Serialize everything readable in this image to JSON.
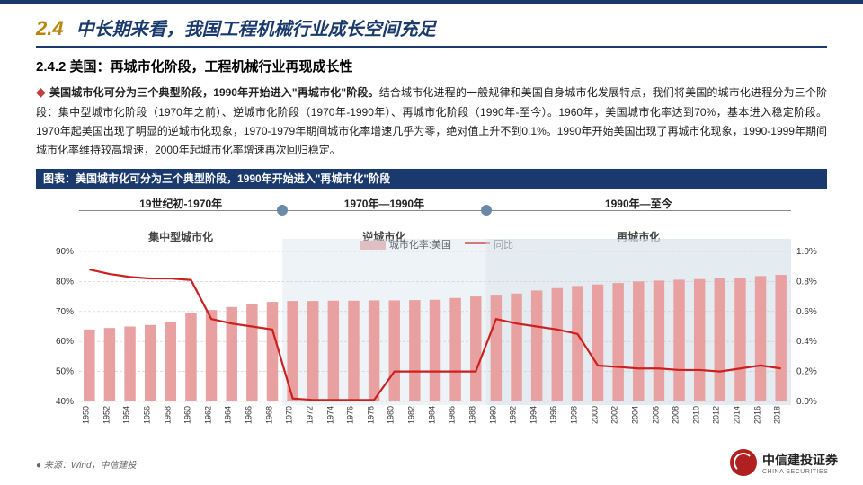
{
  "header": {
    "section_number": "2.4",
    "section_title": "中长期来看，我国工程机械行业成长空间充足"
  },
  "subtitle": "2.4.2 美国：再城市化阶段，工程机械行业再现成长性",
  "body": {
    "lead": "美国城市化可分为三个典型阶段，1990年开始进入\"再城市化\"阶段。",
    "rest": "结合城市化进程的一般规律和美国自身城市化发展特点，我们将美国的城市化进程分为三个阶段：集中型城市化阶段（1970年之前）、逆城市化阶段（1970年-1990年）、再城市化阶段（1990年-至今）。1960年，美国城市化率达到70%，基本进入稳定阶段。1970年起美国出现了明显的逆城市化现象，1970-1979年期间城市化率增速几乎为零，绝对值上升不到0.1%。1990年开始美国出现了再城市化现象，1990-1999年期间城市化率维持较高增速，2000年起城市化率增速再次回归稳定。"
  },
  "chart": {
    "title": "图表：美国城市化可分为三个典型阶段，1990年开始进入\"再城市化\"阶段",
    "periods": [
      {
        "label": "19世纪初-1970年",
        "stage": "集中型城市化"
      },
      {
        "label": "1970年—1990年",
        "stage": "逆城市化"
      },
      {
        "label": "1990年—至今",
        "stage": "再城市化"
      }
    ],
    "legend": {
      "bar": "城市化率:美国",
      "line": "同比"
    },
    "years": [
      1950,
      1952,
      1954,
      1956,
      1958,
      1960,
      1962,
      1964,
      1966,
      1968,
      1970,
      1972,
      1974,
      1976,
      1978,
      1980,
      1982,
      1984,
      1986,
      1988,
      1990,
      1992,
      1994,
      1996,
      1998,
      2000,
      2002,
      2004,
      2006,
      2008,
      2010,
      2012,
      2014,
      2016,
      2018
    ],
    "urban_rate": [
      64,
      64.5,
      65,
      65.5,
      66.5,
      69.5,
      70.5,
      71.5,
      72.5,
      73.2,
      73.5,
      73.5,
      73.6,
      73.6,
      73.7,
      73.7,
      73.8,
      73.9,
      74.5,
      75,
      75.3,
      76,
      77,
      77.8,
      78.5,
      79,
      79.5,
      80,
      80.3,
      80.6,
      80.8,
      81,
      81.3,
      81.8,
      82.2
    ],
    "yoy": [
      0.88,
      0.85,
      0.83,
      0.82,
      0.82,
      0.81,
      0.55,
      0.52,
      0.5,
      0.48,
      0.02,
      0.01,
      0.01,
      0.01,
      0.01,
      0.2,
      0.2,
      0.2,
      0.2,
      0.2,
      0.55,
      0.52,
      0.5,
      0.48,
      0.45,
      0.24,
      0.23,
      0.22,
      0.22,
      0.21,
      0.21,
      0.2,
      0.22,
      0.24,
      0.22
    ],
    "left_axis": {
      "min": 40,
      "max": 90,
      "step": 10,
      "label_suffix": "%"
    },
    "right_axis": {
      "min": 0.0,
      "max": 1.0,
      "step": 0.2,
      "label_suffix": "%"
    },
    "colors": {
      "bar": "#e8a0a0",
      "line": "#cc2020",
      "grid": "#cccccc",
      "shade": "#d8e4ec",
      "period_dot": "#6b8aa8"
    }
  },
  "source": "来源：Wind，中信建投",
  "logo": {
    "cn": "中信建投证券",
    "en": "CHINA SECURITIES"
  }
}
